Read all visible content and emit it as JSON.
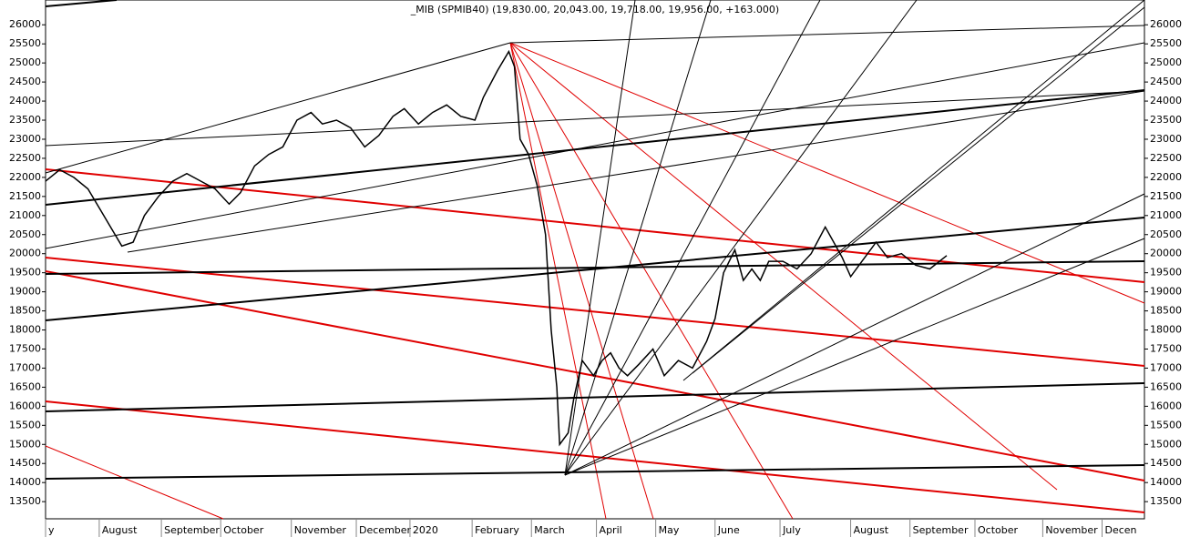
{
  "chart_data": {
    "type": "line",
    "title": "_MIB (SPMIB40) (19,830.00, 20,043.00, 19,718.00, 19,956.00, +163.000)",
    "series": [
      {
        "name": "_MIB (SPMIB40)",
        "color": "#000000",
        "x": [
          0,
          5,
          10,
          15,
          19,
          23,
          27,
          31,
          35,
          40,
          45,
          50,
          55,
          60,
          65,
          69,
          74,
          79,
          84,
          89,
          94,
          98,
          103,
          108,
          113,
          118,
          123,
          127,
          132,
          137,
          142,
          147,
          152,
          155,
          160,
          164,
          166,
          168,
          171,
          174,
          177,
          179,
          181,
          182,
          185,
          187,
          190,
          194,
          197,
          200,
          203,
          206,
          210,
          215,
          219,
          224,
          229,
          234,
          237,
          240,
          244,
          247,
          250,
          253,
          256,
          261,
          266,
          271,
          276,
          279,
          282,
          285,
          289,
          294,
          298,
          303,
          308,
          313,
          319
        ],
        "values": [
          21900,
          22200,
          22000,
          21700,
          21200,
          20700,
          20200,
          20300,
          21000,
          21500,
          21900,
          22100,
          21900,
          21700,
          21300,
          21600,
          22300,
          22600,
          22800,
          23500,
          23700,
          23400,
          23500,
          23300,
          22800,
          23100,
          23600,
          23800,
          23400,
          23700,
          23900,
          23600,
          23500,
          24100,
          24800,
          25300,
          24900,
          23000,
          22600,
          21800,
          20500,
          18000,
          16500,
          15000,
          15300,
          16200,
          17200,
          16800,
          17200,
          17400,
          17000,
          16800,
          17100,
          17500,
          16800,
          17200,
          17000,
          17700,
          18300,
          19500,
          20100,
          19300,
          19600,
          19300,
          19800,
          19800,
          19600,
          20000,
          20700,
          20300,
          19900,
          19400,
          19800,
          20300,
          19900,
          20000,
          19700,
          19600,
          19950
        ]
      }
    ],
    "xlim": [
      0,
      389
    ],
    "xticks": [
      {
        "value": 0,
        "label": "y"
      },
      {
        "value": 19,
        "label": "August"
      },
      {
        "value": 41,
        "label": "September"
      },
      {
        "value": 62,
        "label": "October"
      },
      {
        "value": 87,
        "label": "November"
      },
      {
        "value": 110,
        "label": "December"
      },
      {
        "value": 129,
        "label": "2020"
      },
      {
        "value": 151,
        "label": "February"
      },
      {
        "value": 172,
        "label": "March"
      },
      {
        "value": 195,
        "label": "April"
      },
      {
        "value": 216,
        "label": "May"
      },
      {
        "value": 237,
        "label": "June"
      },
      {
        "value": 260,
        "label": "July"
      },
      {
        "value": 285,
        "label": "August"
      },
      {
        "value": 306,
        "label": "September"
      },
      {
        "value": 329,
        "label": "October"
      },
      {
        "value": 353,
        "label": "November"
      },
      {
        "value": 374,
        "label": "Decen"
      }
    ],
    "ylim": [
      13050,
      26650
    ],
    "yticks": [
      13500,
      14000,
      14500,
      15000,
      15500,
      16000,
      16500,
      17000,
      17500,
      18000,
      18500,
      19000,
      19500,
      20000,
      20500,
      21000,
      21500,
      22000,
      22500,
      23000,
      23500,
      24000,
      24500,
      25000,
      25500,
      26000
    ]
  }
}
